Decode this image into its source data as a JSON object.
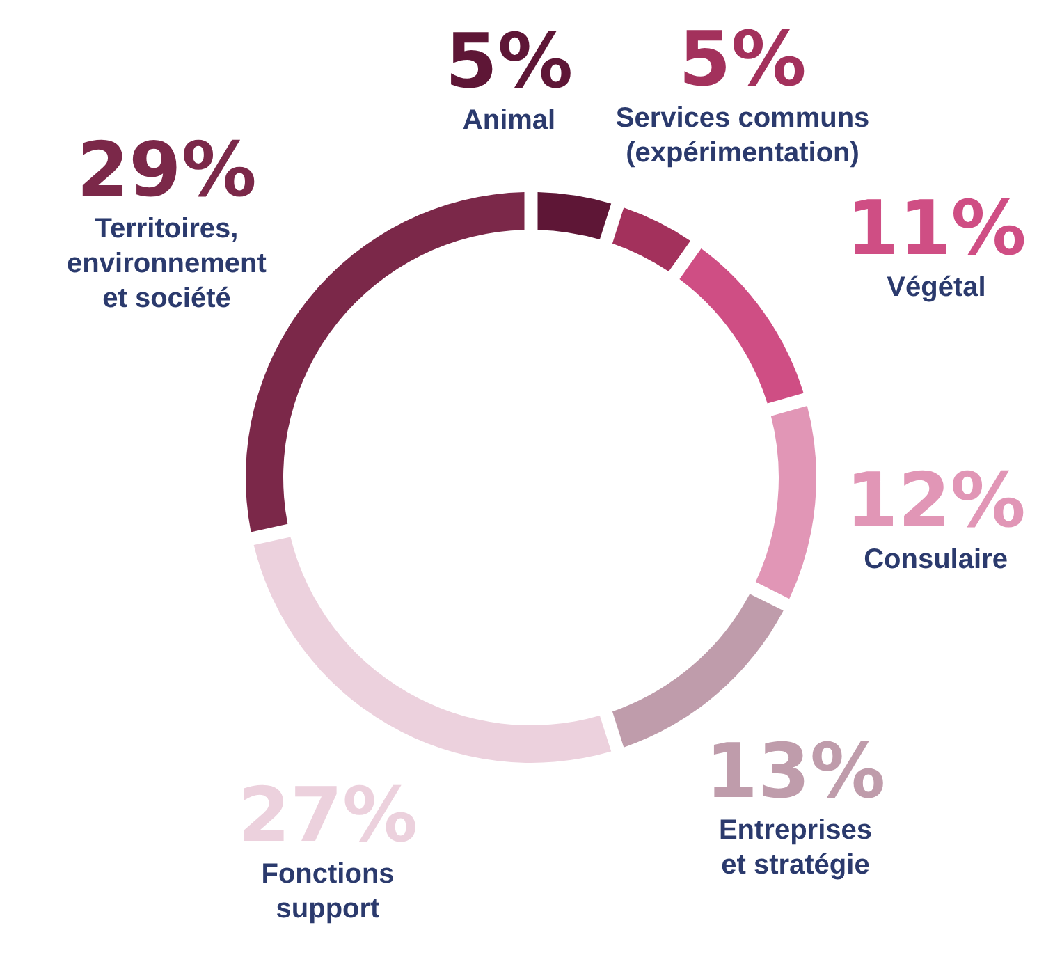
{
  "chart_data": {
    "type": "donut",
    "categories": [
      "Animal",
      "Services communs\n(expérimentation)",
      "Végétal",
      "Consulaire",
      "Entreprises\net stratégie",
      "Fonctions\nsupport",
      "Territoires,\nenvironnement\net société"
    ],
    "values": [
      5,
      5,
      11,
      12,
      13,
      27,
      29
    ],
    "value_labels": [
      "5%",
      "5%",
      "11%",
      "12%",
      "13%",
      "27%",
      "29%"
    ],
    "colors": [
      "#5e1636",
      "#a3315c",
      "#cf4e84",
      "#e196b6",
      "#bf9cab",
      "#ecd1dd",
      "#7b2849"
    ]
  }
}
